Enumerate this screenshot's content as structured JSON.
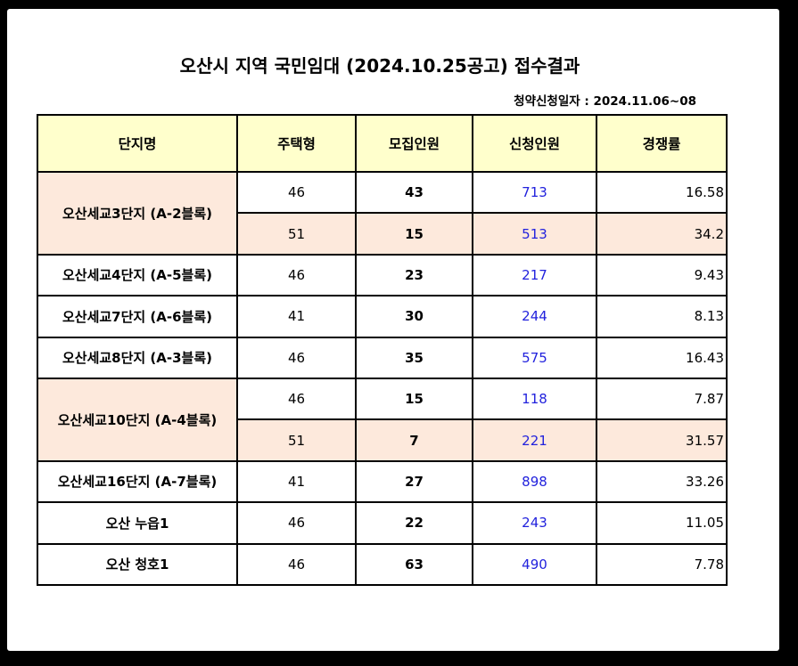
{
  "title": "오산시 지역 국민임대 (2024.10.25공고) 접수결과",
  "subtitle": "청약신청일자 : 2024.11.06~08",
  "headers": [
    "단지명",
    "주택형",
    "모집인원",
    "신청인원",
    "경쟁률"
  ],
  "complexes": [
    {
      "name": "오산세교3단지 (A-2블록)",
      "rows": [
        {
          "type": "46",
          "recruit": "43",
          "applied": "713",
          "rate": "16.58"
        },
        {
          "type": "51",
          "recruit": "15",
          "applied": "513",
          "rate": "34.2"
        }
      ]
    },
    {
      "name": "오산세교4단지 (A-5블록)",
      "rows": [
        {
          "type": "46",
          "recruit": "23",
          "applied": "217",
          "rate": "9.43"
        }
      ]
    },
    {
      "name": "오산세교7단지 (A-6블록)",
      "rows": [
        {
          "type": "41",
          "recruit": "30",
          "applied": "244",
          "rate": "8.13"
        }
      ]
    },
    {
      "name": "오산세교8단지 (A-3블록)",
      "rows": [
        {
          "type": "46",
          "recruit": "35",
          "applied": "575",
          "rate": "16.43"
        }
      ]
    },
    {
      "name": "오산세교10단지 (A-4블록)",
      "rows": [
        {
          "type": "46",
          "recruit": "15",
          "applied": "118",
          "rate": "7.87"
        },
        {
          "type": "51",
          "recruit": "7",
          "applied": "221",
          "rate": "31.57"
        }
      ]
    },
    {
      "name": "오산세교16단지 (A-7블록)",
      "rows": [
        {
          "type": "41",
          "recruit": "27",
          "applied": "898",
          "rate": "33.26"
        }
      ]
    },
    {
      "name": "오산 누읍1",
      "rows": [
        {
          "type": "46",
          "recruit": "22",
          "applied": "243",
          "rate": "11.05"
        }
      ]
    },
    {
      "name": "오산 청호1",
      "rows": [
        {
          "type": "46",
          "recruit": "63",
          "applied": "490",
          "rate": "7.78"
        }
      ]
    }
  ],
  "colors": {
    "header_bg": "#ffffcc",
    "shade_bg": "#fde9dc",
    "applied_text": "#2222dd"
  }
}
